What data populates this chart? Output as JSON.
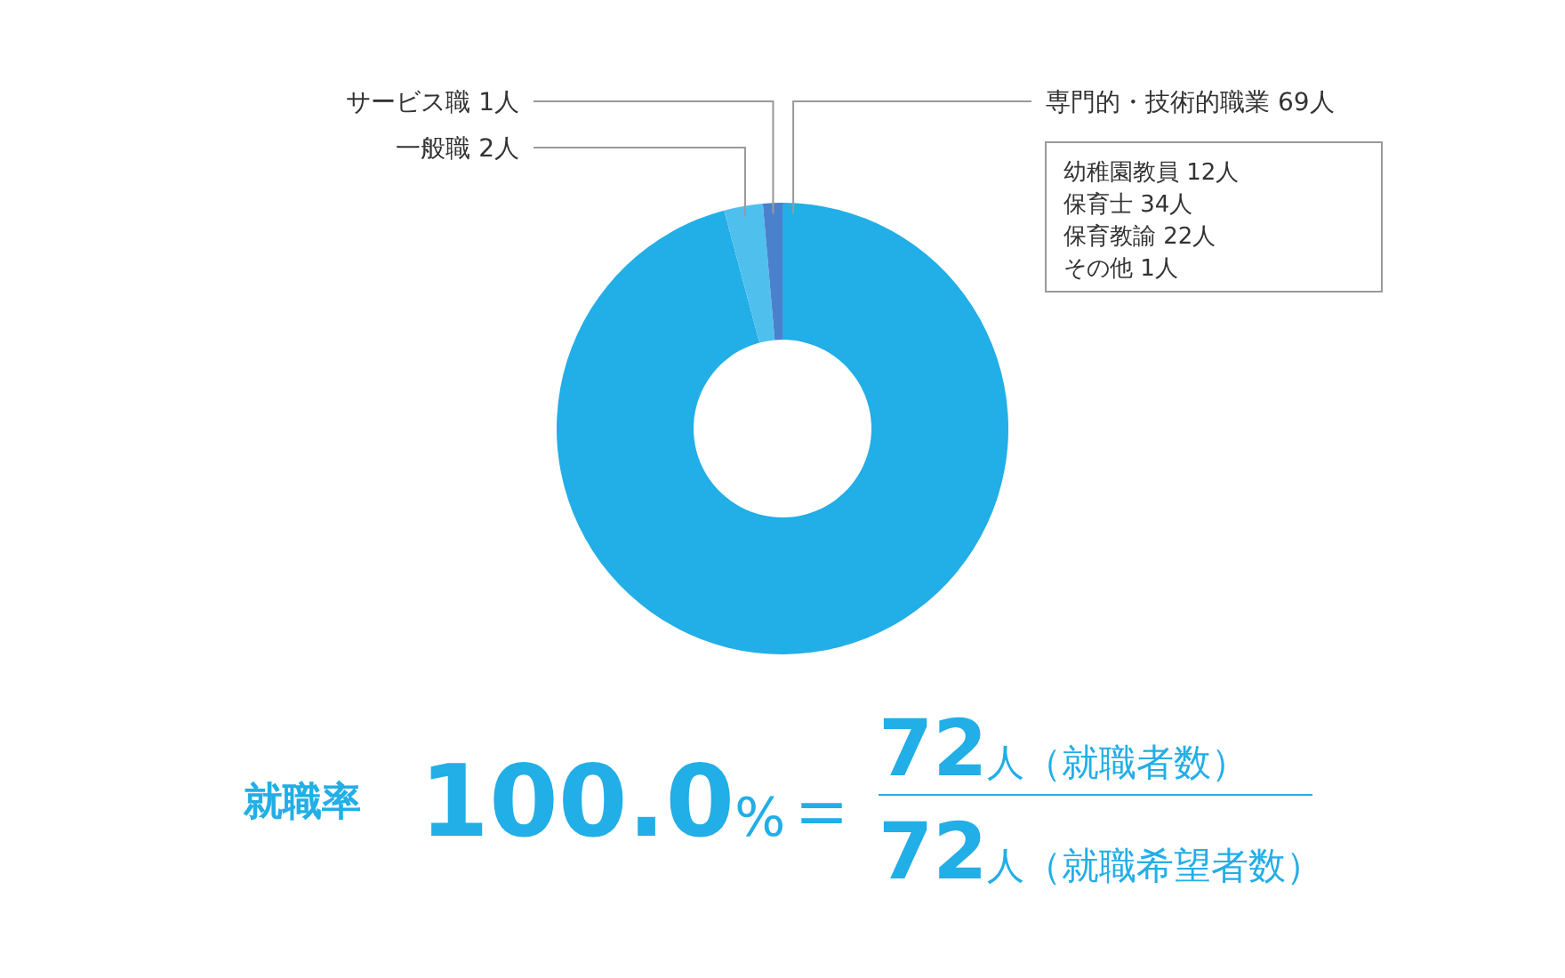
{
  "chart_data": {
    "type": "donut",
    "categories": [
      "専門的・技術的職業",
      "一般職",
      "サービス職"
    ],
    "values": [
      69,
      2,
      1
    ],
    "value_labels": [
      "69人",
      "2人",
      "1人"
    ],
    "colors": [
      "#22aee6",
      "#4fc0ee",
      "#4a80cc"
    ],
    "annotations": [
      "幼稚園教員 12人",
      "保育士 34人",
      "保育教諭 22人",
      "その他 1人",
      "就職率",
      "100.0%",
      "＝",
      "72人（就職者数）",
      "72人（就職希望者数）"
    ]
  }
}
